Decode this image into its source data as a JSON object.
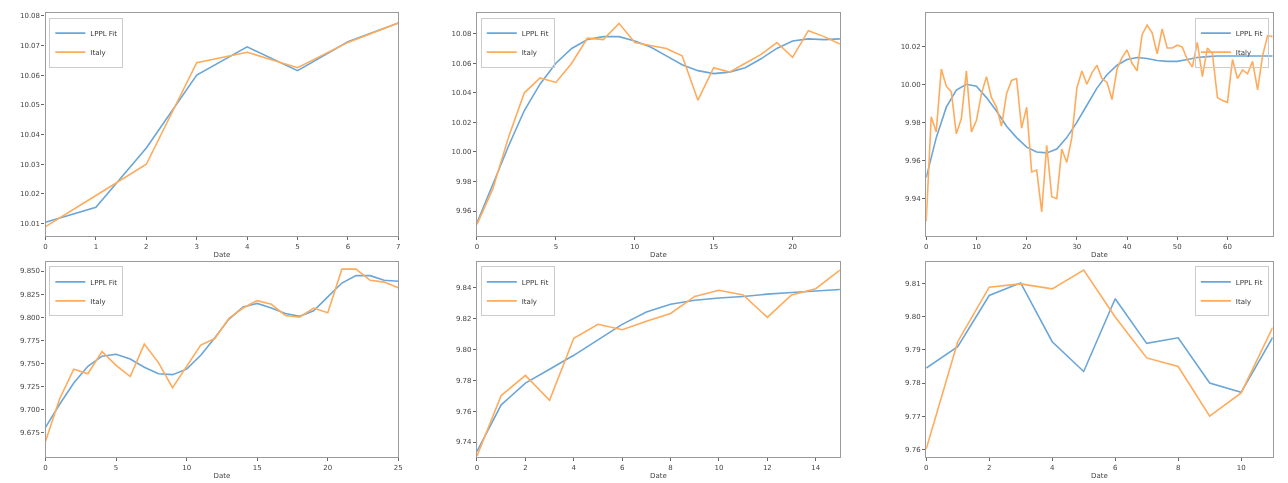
{
  "chart_data": [
    {
      "type": "line",
      "xlabel": "Date",
      "x": [
        0,
        1,
        2,
        3,
        4,
        5,
        6,
        7
      ],
      "xlim": [
        0,
        7
      ],
      "xticks": [
        0,
        1,
        2,
        3,
        4,
        5,
        6,
        7
      ],
      "ylim": [
        10.0058,
        10.0809
      ],
      "yticks": [
        10.01,
        10.02,
        10.03,
        10.04,
        10.05,
        10.06,
        10.07,
        10.08
      ],
      "legend": "top left",
      "grid": false,
      "series": [
        {
          "name": "LPPL Fit",
          "color": "#6aa6d8",
          "values": [
            10.0105,
            10.0155,
            10.0355,
            10.06,
            10.0695,
            10.0615,
            10.0712,
            10.0775
          ]
        },
        {
          "name": "Italy",
          "color": "#ffab5c",
          "values": [
            10.009,
            10.0195,
            10.03,
            10.0642,
            10.0677,
            10.0625,
            10.071,
            10.0775
          ]
        }
      ]
    },
    {
      "type": "line",
      "xlabel": "Date",
      "x": [
        0,
        1,
        2,
        3,
        4,
        5,
        6,
        7,
        8,
        9,
        10,
        11,
        12,
        13,
        14,
        15,
        16,
        17,
        18,
        19,
        20,
        21,
        22,
        23
      ],
      "xlim": [
        0,
        23
      ],
      "xticks": [
        0,
        5,
        10,
        15,
        20
      ],
      "ylim": [
        9.943,
        10.094
      ],
      "yticks": [
        9.96,
        9.98,
        {
          "value": 10.0,
          "label": "10.00"
        },
        10.02,
        10.04,
        10.06,
        10.08
      ],
      "legend": "top left",
      "grid": false,
      "series": [
        {
          "name": "LPPL Fit",
          "color": "#6aa6d8",
          "values": [
            9.952,
            9.978,
            10.004,
            10.028,
            10.046,
            10.06,
            10.07,
            10.076,
            10.078,
            10.078,
            10.075,
            10.071,
            10.065,
            10.059,
            10.055,
            10.053,
            10.054,
            10.057,
            10.063,
            10.07,
            10.075,
            10.0765,
            10.076,
            10.0765
          ]
        },
        {
          "name": "Italy",
          "color": "#ffab5c",
          "values": [
            9.951,
            9.975,
            10.01,
            10.04,
            10.05,
            10.047,
            10.06,
            10.077,
            10.076,
            10.087,
            10.074,
            10.072,
            10.07,
            10.065,
            10.035,
            10.057,
            10.054,
            10.06,
            10.066,
            10.074,
            10.064,
            10.082,
            10.078,
            10.073
          ]
        }
      ]
    },
    {
      "type": "line",
      "xlabel": "Date",
      "x": [
        0,
        1,
        2,
        3,
        4,
        5,
        6,
        7,
        8,
        9,
        10,
        11,
        12,
        13,
        14,
        15,
        16,
        17,
        18,
        19,
        20,
        21,
        22,
        23,
        24,
        25,
        26,
        27,
        28,
        29,
        30,
        31,
        32,
        33,
        34,
        35,
        36,
        37,
        38,
        39,
        40,
        41,
        42,
        43,
        44,
        45,
        46,
        47,
        48,
        49,
        50,
        51,
        52,
        53,
        54,
        55,
        56,
        57,
        58,
        59,
        60,
        61,
        62,
        63,
        64,
        65,
        66,
        67,
        68,
        69
      ],
      "xlim": [
        0,
        69
      ],
      "xticks": [
        0,
        10,
        20,
        30,
        40,
        50,
        60
      ],
      "ylim": [
        9.9203,
        10.0374
      ],
      "yticks": [
        9.94,
        9.96,
        9.98,
        {
          "value": 10.0,
          "label": "10.00"
        },
        10.02
      ],
      "legend": "top right",
      "grid": false,
      "series": [
        {
          "name": "LPPL Fit",
          "color": "#6aa6d8",
          "x": [
            0,
            2,
            4,
            6,
            8,
            10,
            12,
            14,
            16,
            18,
            20,
            22,
            24,
            26,
            28,
            30,
            32,
            34,
            36,
            38,
            40,
            42,
            44,
            46,
            48,
            50,
            52,
            54,
            56,
            58,
            60,
            64,
            69
          ],
          "values": [
            9.951,
            9.972,
            9.988,
            9.997,
            10.0,
            9.999,
            9.993,
            9.986,
            9.978,
            9.972,
            9.967,
            9.9645,
            9.964,
            9.966,
            9.972,
            9.98,
            9.989,
            9.998,
            10.005,
            10.01,
            10.013,
            10.014,
            10.0135,
            10.0125,
            10.012,
            10.012,
            10.013,
            10.014,
            10.0145,
            10.0148,
            10.0148,
            10.0148,
            10.0148
          ]
        },
        {
          "name": "Italy",
          "color": "#ffab5c",
          "values": [
            9.928,
            9.983,
            9.975,
            10.008,
            9.999,
            9.996,
            9.974,
            9.982,
            10.007,
            9.975,
            9.981,
            9.995,
            10.004,
            9.993,
            9.988,
            9.978,
            9.995,
            10.002,
            10.003,
            9.977,
            9.988,
            9.954,
            9.955,
            9.933,
            9.968,
            9.941,
            9.94,
            9.966,
            9.959,
            9.972,
            9.998,
            10.007,
            10.0,
            10.006,
            10.01,
            10.003,
            10.001,
            9.992,
            10.008,
            10.014,
            10.018,
            10.011,
            10.007,
            10.026,
            10.031,
            10.027,
            10.016,
            10.029,
            10.019,
            10.019,
            10.0205,
            10.0195,
            10.013,
            10.009,
            10.022,
            10.004,
            10.019,
            10.016,
            9.993,
            9.9915,
            9.9905,
            10.013,
            10.003,
            10.0075,
            10.0055,
            10.012,
            9.997,
            10.015,
            10.0255,
            10.025
          ]
        }
      ]
    },
    {
      "type": "line",
      "xlabel": "Date",
      "x": [
        0,
        1,
        2,
        3,
        4,
        5,
        6,
        7,
        8,
        9,
        10,
        11,
        12,
        13,
        14,
        15,
        16,
        17,
        18,
        19,
        20,
        21,
        22,
        23,
        24,
        25
      ],
      "xlim": [
        0,
        25
      ],
      "xticks": [
        0,
        5,
        10,
        15,
        20,
        25
      ],
      "ylim": [
        9.649,
        9.86
      ],
      "yticks": [
        9.675,
        {
          "value": 9.7,
          "label": "9.700"
        },
        9.725,
        {
          "value": 9.75,
          "label": "9.750"
        },
        9.775,
        {
          "value": 9.8,
          "label": "9.800"
        },
        9.825,
        {
          "value": 9.85,
          "label": "9.850"
        }
      ],
      "legend": "top left",
      "grid": false,
      "series": [
        {
          "name": "LPPL Fit",
          "color": "#6aa6d8",
          "values": [
            9.681,
            9.706,
            9.729,
            9.747,
            9.758,
            9.76,
            9.755,
            9.746,
            9.739,
            9.738,
            9.744,
            9.759,
            9.778,
            9.798,
            9.811,
            9.815,
            9.81,
            9.804,
            9.801,
            9.807,
            9.822,
            9.837,
            9.845,
            9.845,
            9.84,
            9.839
          ]
        },
        {
          "name": "Italy",
          "color": "#ffab5c",
          "values": [
            9.666,
            9.712,
            9.744,
            9.739,
            9.763,
            9.748,
            9.736,
            9.771,
            9.751,
            9.724,
            9.747,
            9.77,
            9.777,
            9.799,
            9.81,
            9.818,
            9.814,
            9.802,
            9.8,
            9.81,
            9.805,
            9.852,
            9.852,
            9.84,
            9.838,
            9.832
          ]
        }
      ]
    },
    {
      "type": "line",
      "xlabel": "Date",
      "x": [
        0,
        1,
        2,
        3,
        4,
        5,
        6,
        7,
        8,
        9,
        10,
        11,
        12,
        13,
        14,
        15
      ],
      "xlim": [
        0,
        15
      ],
      "xticks": [
        0,
        2,
        4,
        6,
        8,
        10,
        12,
        14
      ],
      "ylim": [
        9.7303,
        9.8564
      ],
      "yticks": [
        9.74,
        9.76,
        9.78,
        {
          "value": 9.8,
          "label": "9.80"
        },
        9.82,
        9.84
      ],
      "legend": "top left",
      "grid": false,
      "series": [
        {
          "name": "LPPL Fit",
          "color": "#6aa6d8",
          "values": [
            9.734,
            9.764,
            9.778,
            9.787,
            9.796,
            9.806,
            9.816,
            9.824,
            9.829,
            9.8315,
            9.833,
            9.834,
            9.8355,
            9.8365,
            9.8375,
            9.8385
          ]
        },
        {
          "name": "Italy",
          "color": "#ffab5c",
          "values": [
            9.731,
            9.77,
            9.783,
            9.767,
            9.807,
            9.816,
            9.8125,
            9.818,
            9.823,
            9.834,
            9.838,
            9.835,
            9.8205,
            9.835,
            9.839,
            9.851
          ]
        }
      ]
    },
    {
      "type": "line",
      "xlabel": "Date",
      "x": [
        0,
        1,
        2,
        3,
        4,
        5,
        6,
        7,
        8,
        9,
        10,
        11
      ],
      "xlim": [
        0,
        11
      ],
      "xticks": [
        0,
        2,
        4,
        6,
        8,
        10
      ],
      "ylim": [
        9.7576,
        9.8167
      ],
      "yticks": [
        9.76,
        9.77,
        9.78,
        9.79,
        {
          "value": 9.8,
          "label": "9.80"
        },
        9.81
      ],
      "legend": "top right",
      "grid": false,
      "series": [
        {
          "name": "LPPL Fit",
          "color": "#6aa6d8",
          "values": [
            9.7845,
            9.791,
            9.8065,
            9.8103,
            9.7925,
            9.7835,
            9.8055,
            9.792,
            9.7937,
            9.78,
            9.7772,
            9.7938
          ]
        },
        {
          "name": "Italy",
          "color": "#ffab5c",
          "values": [
            9.76,
            9.7925,
            9.809,
            9.81,
            9.8085,
            9.8142,
            9.8,
            9.7876,
            9.785,
            9.77,
            9.777,
            9.7968
          ]
        }
      ]
    }
  ]
}
